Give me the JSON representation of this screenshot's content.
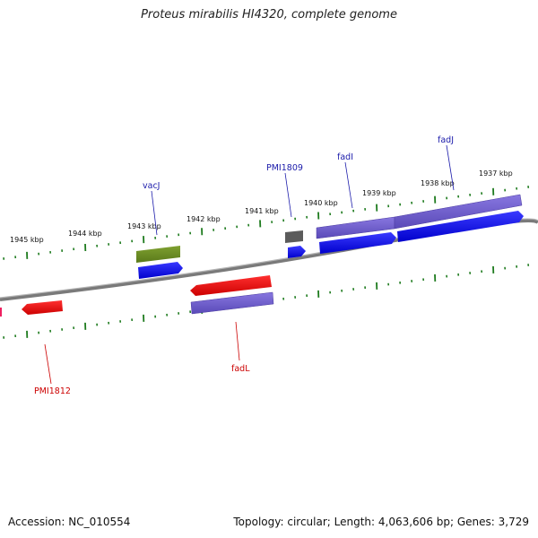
{
  "title": "Proteus mirabilis HI4320, complete genome",
  "footer": {
    "accession": "Accession: NC_010554",
    "summary": "Topology: circular; Length: 4,063,606 bp; Genes: 3,729"
  },
  "ticks_upper": [
    "1945 kbp",
    "1944 kbp",
    "1943 kbp",
    "1942 kbp",
    "1941 kbp",
    "1940 kbp",
    "1939 kbp",
    "1938 kbp",
    "1937 kbp"
  ],
  "gene_labels": {
    "vacJ": "vacJ",
    "PMI1809": "PMI1809",
    "fadI": "fadI",
    "fadJ": "fadJ",
    "fadL": "fadL",
    "PMI1812": "PMI1812"
  },
  "colors": {
    "backbone": "#8a8a8a",
    "tick": "#1e7b1e",
    "forward_cds": "#0000ee",
    "reverse_cds": "#ee0000",
    "feature_purple": "#6a5acd",
    "feature_olive": "#6b8e23",
    "feature_gray": "#555555",
    "label_blue": "#1a1aaa",
    "label_red": "#cc0000"
  }
}
